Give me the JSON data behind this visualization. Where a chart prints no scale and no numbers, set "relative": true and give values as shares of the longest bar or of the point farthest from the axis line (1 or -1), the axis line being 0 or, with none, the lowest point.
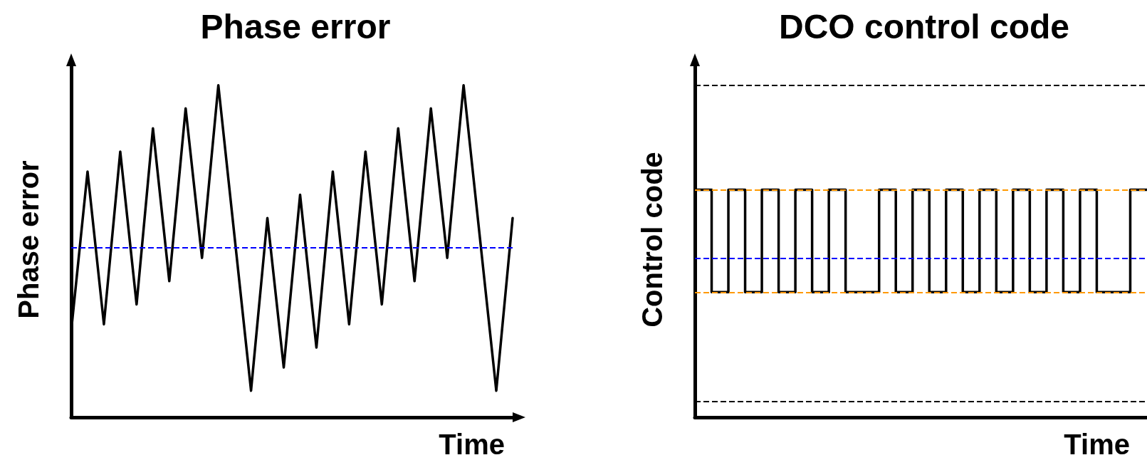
{
  "chart_data": [
    {
      "type": "line",
      "title": "Phase error",
      "ylabel": "Phase error",
      "xlabel": "Time",
      "relative": true,
      "categories": [
        null,
        null,
        null,
        null,
        null,
        null,
        null,
        null,
        null,
        null,
        null,
        null,
        null,
        null,
        null,
        null,
        null,
        null,
        null,
        null,
        null,
        null,
        null,
        null,
        null,
        null,
        null,
        null
      ],
      "series": [
        {
          "color": "#000000",
          "values": [
            0.26,
            0.74,
            0.28,
            0.8,
            0.34,
            0.87,
            0.41,
            0.93,
            0.48,
            1,
            null,
            0.08,
            0.6,
            0.15,
            0.67,
            0.21,
            0.74,
            0.28,
            0.8,
            0.34,
            0.87,
            0.41,
            0.93,
            0.48,
            1,
            null,
            0.08,
            0.6
          ]
        }
      ],
      "ref_lines": [
        {
          "axis": "y",
          "value": 0.51,
          "color": "#0000ff",
          "line_style": "dashed"
        }
      ]
    },
    {
      "type": "step",
      "title": "DCO control code",
      "ylabel": "Control code",
      "xlabel": "Time",
      "relative": true,
      "categories": [
        null,
        null,
        null,
        null,
        null,
        null,
        null,
        null,
        null,
        null,
        null,
        null,
        null,
        null,
        null,
        null,
        null,
        null,
        null,
        null,
        null,
        null,
        null,
        null,
        null,
        null,
        null,
        null
      ],
      "series": [
        {
          "color": "#000000",
          "values": [
            1,
            0.55,
            1,
            0.55,
            1,
            0.55,
            1,
            0.55,
            1,
            0.55,
            0.55,
            1,
            0.55,
            1,
            0.55,
            1,
            0.55,
            1,
            0.55,
            1,
            0.55,
            1,
            0.55,
            1,
            0.55,
            0.55,
            1,
            1
          ]
        }
      ],
      "ref_lines": [
        {
          "axis": "y",
          "value": 1.46,
          "color": "#000000",
          "line_style": "dashed"
        },
        {
          "axis": "y",
          "value": 1,
          "color": "#ff9900",
          "line_style": "dashed"
        },
        {
          "axis": "y",
          "value": 0.7,
          "color": "#0000ff",
          "line_style": "dashed"
        },
        {
          "axis": "y",
          "value": 0.55,
          "color": "#ff9900",
          "line_style": "dashed"
        },
        {
          "axis": "y",
          "value": 0.065,
          "color": "#000000",
          "line_style": "dashed"
        }
      ]
    }
  ]
}
